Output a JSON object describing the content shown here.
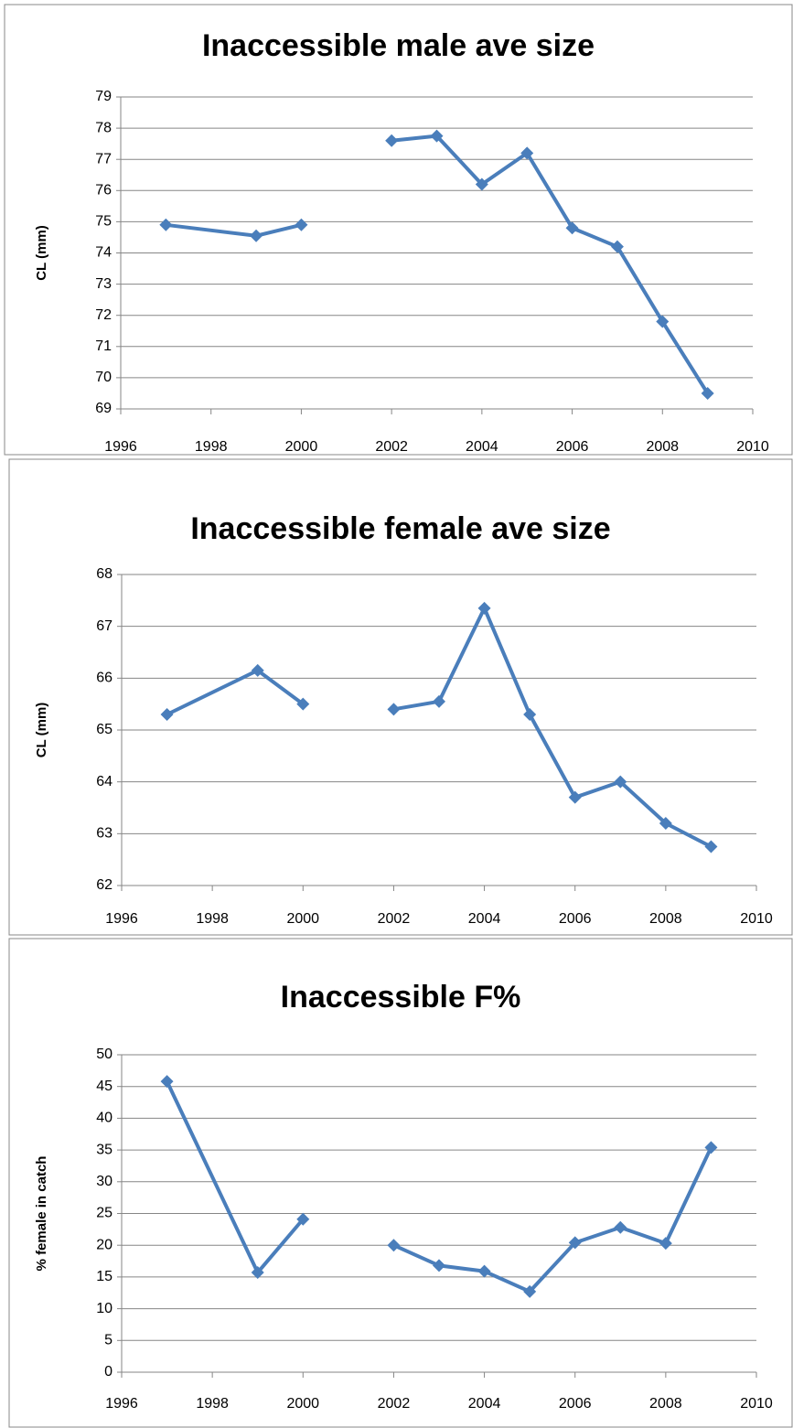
{
  "chart_data": [
    {
      "type": "line",
      "title": "Inaccessible male ave size",
      "y_label": "CL (mm)",
      "x": [
        1997,
        1999,
        2000,
        2001,
        2002,
        2003,
        2004,
        2005,
        2006,
        2007,
        2008,
        2009
      ],
      "series": [
        {
          "name": "Inaccessible male ave size",
          "color": "#4a7ebb",
          "values": [
            74.9,
            74.55,
            74.9,
            null,
            77.6,
            77.75,
            76.2,
            77.2,
            74.8,
            74.2,
            71.8,
            69.5
          ]
        }
      ],
      "xlim": [
        1996,
        2010
      ],
      "xticks": [
        1996,
        1998,
        2000,
        2002,
        2004,
        2006,
        2008,
        2010
      ],
      "ylim": [
        69,
        79
      ],
      "yticks": [
        69,
        70,
        71,
        72,
        73,
        74,
        75,
        76,
        77,
        78,
        79
      ],
      "grid": true
    },
    {
      "type": "line",
      "title": "Inaccessible female ave size",
      "y_label": "CL (mm)",
      "x": [
        1997,
        1999,
        2000,
        2001,
        2002,
        2003,
        2004,
        2005,
        2006,
        2007,
        2008,
        2009
      ],
      "series": [
        {
          "name": "Inaccessible female ave size",
          "color": "#4a7ebb",
          "values": [
            65.3,
            66.15,
            65.5,
            null,
            65.4,
            65.55,
            67.35,
            65.3,
            63.7,
            64.0,
            63.2,
            62.75
          ]
        }
      ],
      "xlim": [
        1996,
        2010
      ],
      "xticks": [
        1996,
        1998,
        2000,
        2002,
        2004,
        2006,
        2008,
        2010
      ],
      "ylim": [
        62,
        68
      ],
      "yticks": [
        62,
        63,
        64,
        65,
        66,
        67,
        68
      ],
      "grid": true
    },
    {
      "type": "line",
      "title": "Inaccessible F%",
      "y_label": "% female in catch",
      "x": [
        1997,
        1999,
        2000,
        2001,
        2002,
        2003,
        2004,
        2005,
        2006,
        2007,
        2008,
        2009
      ],
      "series": [
        {
          "name": "Inaccessible F%",
          "color": "#4a7ebb",
          "values": [
            45.8,
            15.7,
            24.1,
            null,
            20,
            16.8,
            15.9,
            12.7,
            20.4,
            22.8,
            20.3,
            35.4
          ]
        }
      ],
      "xlim": [
        1996,
        2010
      ],
      "xticks": [
        1996,
        1998,
        2000,
        2002,
        2004,
        2006,
        2008,
        2010
      ],
      "ylim": [
        0,
        50
      ],
      "yticks": [
        0,
        5,
        10,
        15,
        20,
        25,
        30,
        35,
        40,
        45,
        50
      ],
      "grid": true
    }
  ]
}
